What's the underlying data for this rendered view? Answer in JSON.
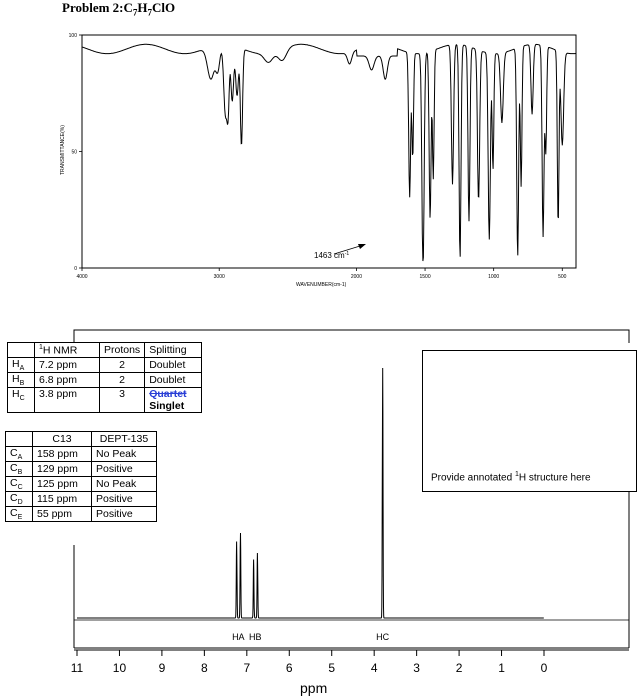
{
  "title": {
    "prefix": "Problem 2:",
    "formula": "C7H7ClO"
  },
  "ir": {
    "chart_data": {
      "type": "line",
      "xlabel": "WAVENUMBER(cm-1)",
      "ylabel": "TRANSMITTANCE(%)",
      "xlim": [
        4000,
        400
      ],
      "ylim": [
        0,
        100
      ],
      "x_ticks": [
        "4000",
        "3000",
        "2000",
        "1500",
        "1000",
        "500"
      ],
      "y_ticks": [
        "100",
        "50",
        "0"
      ],
      "annotation": {
        "text": "1463 cm",
        "superscript": "-1",
        "x": 1463,
        "y": 5
      }
    }
  },
  "h_table": {
    "header": [
      "",
      "1H NMR",
      "Protons",
      "Splitting"
    ],
    "rows": [
      {
        "label": "HA",
        "shift": "7.2 ppm",
        "protons": "2",
        "splitting": "Doublet"
      },
      {
        "label": "HB",
        "shift": "6.8 ppm",
        "protons": "2",
        "splitting": "Doublet"
      },
      {
        "label": "HC",
        "shift": "3.8 ppm",
        "protons": "3",
        "splitting_struck": "Quartet",
        "splitting": "Singlet"
      }
    ]
  },
  "c_table": {
    "header": [
      "",
      "C13",
      "DEPT-135"
    ],
    "rows": [
      {
        "label": "CA",
        "shift": "158 ppm",
        "dept": "No Peak"
      },
      {
        "label": "CB",
        "shift": "129 ppm",
        "dept": "Positive"
      },
      {
        "label": "CC",
        "shift": "125 ppm",
        "dept": "No Peak"
      },
      {
        "label": "CD",
        "shift": "115 ppm",
        "dept": "Positive"
      },
      {
        "label": "CE",
        "shift": "55 ppm",
        "dept": "Positive"
      }
    ]
  },
  "answer_box": {
    "text": "Provide annotated 1H structure here"
  },
  "nmr": {
    "chart_data": {
      "type": "line",
      "xlabel": "ppm",
      "xlim": [
        11,
        0
      ],
      "x_ticks": [
        "11",
        "10",
        "9",
        "8",
        "7",
        "6",
        "5",
        "4",
        "3",
        "2",
        "1",
        "0"
      ],
      "peak_labels": [
        "HA",
        "HB",
        "HC"
      ],
      "peaks": [
        {
          "label": "HA",
          "ppm": 7.2,
          "height": 0.34
        },
        {
          "label": "HB",
          "ppm": 6.8,
          "height": 0.26
        },
        {
          "label": "HC",
          "ppm": 3.8,
          "height": 1.0
        }
      ]
    }
  }
}
